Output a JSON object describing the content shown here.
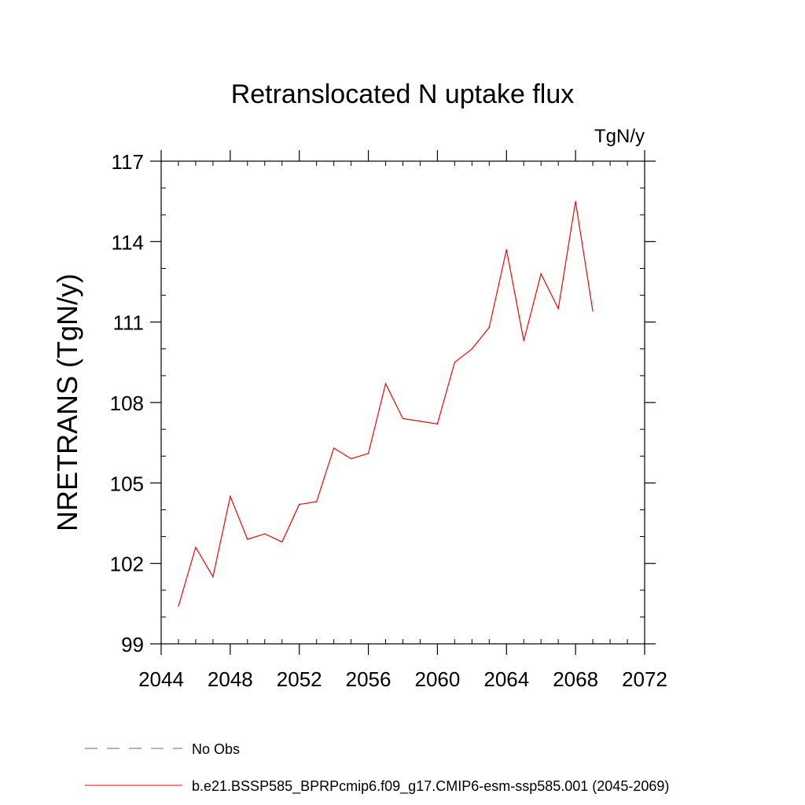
{
  "chart_data": {
    "type": "line",
    "title": "Retranslocated N uptake flux",
    "units_label": "TgN/y",
    "ylabel": "NRETRANS  (TgN/y)",
    "xlabel": "",
    "xlim": [
      2044,
      2072
    ],
    "ylim": [
      99,
      117
    ],
    "xticks": [
      2044,
      2048,
      2052,
      2056,
      2060,
      2064,
      2068,
      2072
    ],
    "yticks": [
      99,
      102,
      105,
      108,
      111,
      114,
      117
    ],
    "grid": false,
    "series": [
      {
        "name": "b.e21.BSSP585_BPRPcmip6.f09_g17.CMIP6-esm-ssp585.001 (2045-2069)",
        "color": "#ff0000",
        "x": [
          2045,
          2046,
          2047,
          2048,
          2049,
          2050,
          2051,
          2052,
          2053,
          2054,
          2055,
          2056,
          2057,
          2058,
          2059,
          2060,
          2061,
          2062,
          2063,
          2064,
          2065,
          2066,
          2067,
          2068,
          2069
        ],
        "y": [
          100.4,
          102.6,
          101.5,
          104.5,
          102.9,
          103.1,
          102.8,
          104.2,
          104.3,
          106.3,
          105.9,
          106.1,
          108.7,
          107.4,
          107.3,
          107.2,
          109.5,
          110.0,
          110.8,
          113.7,
          110.3,
          112.8,
          111.5,
          115.5,
          111.4
        ]
      }
    ],
    "legend": [
      {
        "label": "No Obs",
        "style": "dashed",
        "color": "#6a5acd"
      },
      {
        "label": "b.e21.BSSP585_BPRPcmip6.f09_g17.CMIP6-esm-ssp585.001 (2045-2069)",
        "style": "solid",
        "color": "#ff0000"
      }
    ],
    "legend_position": "bottom"
  }
}
